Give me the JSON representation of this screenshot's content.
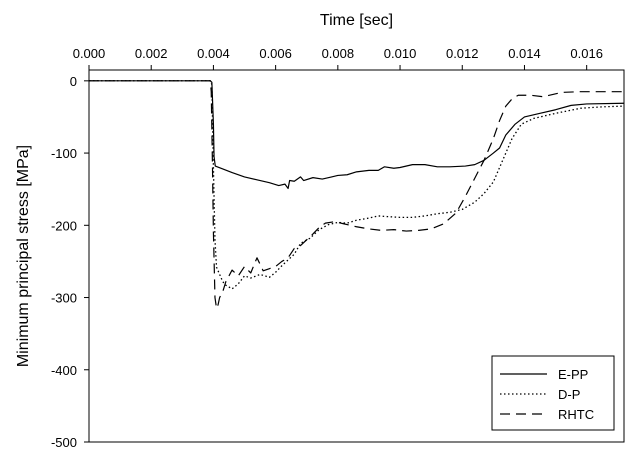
{
  "chart_data": {
    "type": "line",
    "xlabel": "Time [sec]",
    "ylabel": "Minimum principal stress [MPa]",
    "xlim": [
      0.0,
      0.0172
    ],
    "ylim": [
      -500,
      15
    ],
    "x_axis_position": "top",
    "x_ticks": [
      0.0,
      0.002,
      0.004,
      0.006,
      0.008,
      0.01,
      0.012,
      0.014,
      0.016
    ],
    "x_tick_labels": [
      "0.000",
      "0.002",
      "0.004",
      "0.006",
      "0.008",
      "0.010",
      "0.012",
      "0.014",
      "0.016"
    ],
    "y_ticks": [
      0,
      -100,
      -200,
      -300,
      -400,
      -500
    ],
    "y_tick_labels": [
      "0",
      "-100",
      "-200",
      "-300",
      "-400",
      "-500"
    ],
    "grid": false,
    "legend_position": "bottom-right",
    "series": [
      {
        "name": "E-PP",
        "style": "solid",
        "points": [
          [
            0.0,
            0
          ],
          [
            0.0039,
            0
          ],
          [
            0.00395,
            -2
          ],
          [
            0.004,
            -60
          ],
          [
            0.00402,
            -105
          ],
          [
            0.00406,
            -118
          ],
          [
            0.0043,
            -122
          ],
          [
            0.0046,
            -127
          ],
          [
            0.005,
            -133
          ],
          [
            0.0054,
            -137
          ],
          [
            0.0058,
            -141
          ],
          [
            0.0061,
            -145
          ],
          [
            0.0063,
            -143
          ],
          [
            0.0064,
            -149
          ],
          [
            0.00645,
            -138
          ],
          [
            0.0066,
            -139
          ],
          [
            0.0068,
            -133
          ],
          [
            0.0069,
            -138
          ],
          [
            0.0072,
            -134
          ],
          [
            0.0075,
            -136
          ],
          [
            0.0078,
            -133
          ],
          [
            0.008,
            -131
          ],
          [
            0.0083,
            -130
          ],
          [
            0.0086,
            -126
          ],
          [
            0.009,
            -124
          ],
          [
            0.0093,
            -124
          ],
          [
            0.0095,
            -119
          ],
          [
            0.0098,
            -121
          ],
          [
            0.01,
            -120
          ],
          [
            0.0104,
            -116
          ],
          [
            0.0108,
            -116
          ],
          [
            0.0112,
            -119
          ],
          [
            0.0116,
            -119
          ],
          [
            0.0121,
            -118
          ],
          [
            0.0124,
            -116
          ],
          [
            0.0127,
            -110
          ],
          [
            0.013,
            -100
          ],
          [
            0.0132,
            -93
          ],
          [
            0.0134,
            -75
          ],
          [
            0.0137,
            -60
          ],
          [
            0.014,
            -50
          ],
          [
            0.0145,
            -45
          ],
          [
            0.015,
            -40
          ],
          [
            0.0155,
            -34
          ],
          [
            0.016,
            -32
          ],
          [
            0.0172,
            -31
          ]
        ]
      },
      {
        "name": "D-P",
        "style": "dotted",
        "points": [
          [
            0.0,
            0
          ],
          [
            0.0039,
            0
          ],
          [
            0.00395,
            -5
          ],
          [
            0.004,
            -120
          ],
          [
            0.00405,
            -220
          ],
          [
            0.0041,
            -258
          ],
          [
            0.0042,
            -268
          ],
          [
            0.0043,
            -278
          ],
          [
            0.0044,
            -283
          ],
          [
            0.0046,
            -288
          ],
          [
            0.0048,
            -281
          ],
          [
            0.005,
            -270
          ],
          [
            0.0052,
            -273
          ],
          [
            0.0055,
            -268
          ],
          [
            0.0058,
            -272
          ],
          [
            0.006,
            -265
          ],
          [
            0.0062,
            -256
          ],
          [
            0.0064,
            -248
          ],
          [
            0.0066,
            -240
          ],
          [
            0.0068,
            -225
          ],
          [
            0.0071,
            -218
          ],
          [
            0.0074,
            -206
          ],
          [
            0.0077,
            -199
          ],
          [
            0.008,
            -196
          ],
          [
            0.0083,
            -197
          ],
          [
            0.0086,
            -193
          ],
          [
            0.009,
            -190
          ],
          [
            0.0093,
            -187
          ],
          [
            0.0096,
            -188
          ],
          [
            0.01,
            -189
          ],
          [
            0.0104,
            -189
          ],
          [
            0.0108,
            -187
          ],
          [
            0.0112,
            -184
          ],
          [
            0.0116,
            -182
          ],
          [
            0.012,
            -178
          ],
          [
            0.0124,
            -168
          ],
          [
            0.0127,
            -156
          ],
          [
            0.013,
            -140
          ],
          [
            0.0133,
            -110
          ],
          [
            0.0136,
            -80
          ],
          [
            0.0139,
            -60
          ],
          [
            0.0143,
            -52
          ],
          [
            0.015,
            -45
          ],
          [
            0.0158,
            -38
          ],
          [
            0.0165,
            -36
          ],
          [
            0.0172,
            -35
          ]
        ]
      },
      {
        "name": "RHTC",
        "style": "dashed",
        "points": [
          [
            0.0,
            0
          ],
          [
            0.0039,
            0
          ],
          [
            0.00393,
            -15
          ],
          [
            0.00397,
            -120
          ],
          [
            0.004,
            -210
          ],
          [
            0.00405,
            -300
          ],
          [
            0.0041,
            -315
          ],
          [
            0.00415,
            -310
          ],
          [
            0.0042,
            -300
          ],
          [
            0.0043,
            -292
          ],
          [
            0.0044,
            -278
          ],
          [
            0.0046,
            -262
          ],
          [
            0.0048,
            -270
          ],
          [
            0.005,
            -257
          ],
          [
            0.0052,
            -266
          ],
          [
            0.0054,
            -245
          ],
          [
            0.0056,
            -263
          ],
          [
            0.0058,
            -260
          ],
          [
            0.006,
            -257
          ],
          [
            0.0062,
            -250
          ],
          [
            0.0064,
            -245
          ],
          [
            0.0066,
            -232
          ],
          [
            0.0068,
            -228
          ],
          [
            0.007,
            -220
          ],
          [
            0.0072,
            -212
          ],
          [
            0.0074,
            -203
          ],
          [
            0.0076,
            -197
          ],
          [
            0.0079,
            -195
          ],
          [
            0.0082,
            -198
          ],
          [
            0.0086,
            -202
          ],
          [
            0.009,
            -205
          ],
          [
            0.0094,
            -207
          ],
          [
            0.0098,
            -206
          ],
          [
            0.0102,
            -208
          ],
          [
            0.0106,
            -207
          ],
          [
            0.011,
            -205
          ],
          [
            0.0114,
            -198
          ],
          [
            0.0118,
            -183
          ],
          [
            0.0121,
            -160
          ],
          [
            0.0124,
            -135
          ],
          [
            0.0127,
            -110
          ],
          [
            0.013,
            -80
          ],
          [
            0.0132,
            -55
          ],
          [
            0.0134,
            -35
          ],
          [
            0.0136,
            -25
          ],
          [
            0.0138,
            -20
          ],
          [
            0.0142,
            -20
          ],
          [
            0.0146,
            -22
          ],
          [
            0.0152,
            -16
          ],
          [
            0.0158,
            -15
          ],
          [
            0.0165,
            -15
          ],
          [
            0.0172,
            -15
          ]
        ]
      }
    ]
  }
}
